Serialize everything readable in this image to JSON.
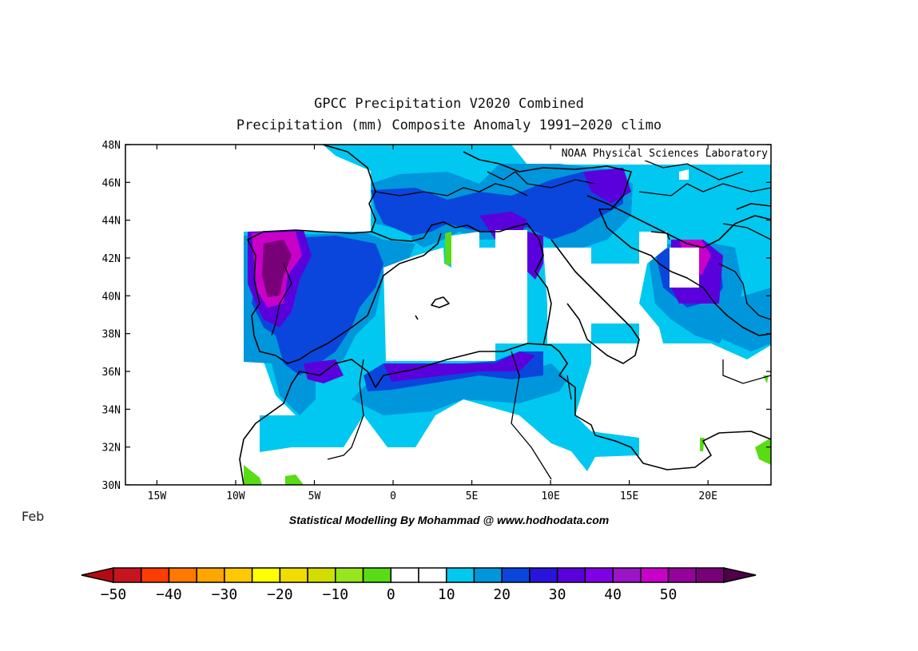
{
  "title_line1": "GPCC Precipitation V2020 Combined",
  "title_line2": "Precipitation (mm) Composite Anomaly 1991−2020 climo",
  "watermark": "NOAA Physical Sciences Laboratory",
  "month_label": "Feb",
  "credit": "Statistical Modelling By Mohammad @ www.hodhodata.com",
  "map": {
    "lon_range": [
      -17,
      24
    ],
    "lat_range": [
      30,
      48
    ],
    "lat_ticks": [
      "48N",
      "46N",
      "44N",
      "42N",
      "40N",
      "38N",
      "36N",
      "34N",
      "32N",
      "30N"
    ],
    "lon_ticks": [
      "15W",
      "10W",
      "5W",
      "0",
      "5E",
      "10E",
      "15E",
      "20E"
    ]
  },
  "colorbar": {
    "labels": [
      "−50",
      "−40",
      "−30",
      "−20",
      "−10",
      "0",
      "10",
      "20",
      "30",
      "40",
      "50"
    ],
    "colors": [
      "#c8141e",
      "#ff3c00",
      "#ff7800",
      "#ffa500",
      "#ffc800",
      "#ffff00",
      "#f0dc00",
      "#d2dc00",
      "#96e61e",
      "#5adc14",
      "#ffffff",
      "#ffffff",
      "#00c8f0",
      "#0096dc",
      "#0a46dc",
      "#2814dc",
      "#5a00dc",
      "#8200e6",
      "#9b14c8",
      "#c800c8",
      "#96009b",
      "#780078"
    ],
    "under_color": "#b40a14",
    "over_color": "#50004b"
  }
}
